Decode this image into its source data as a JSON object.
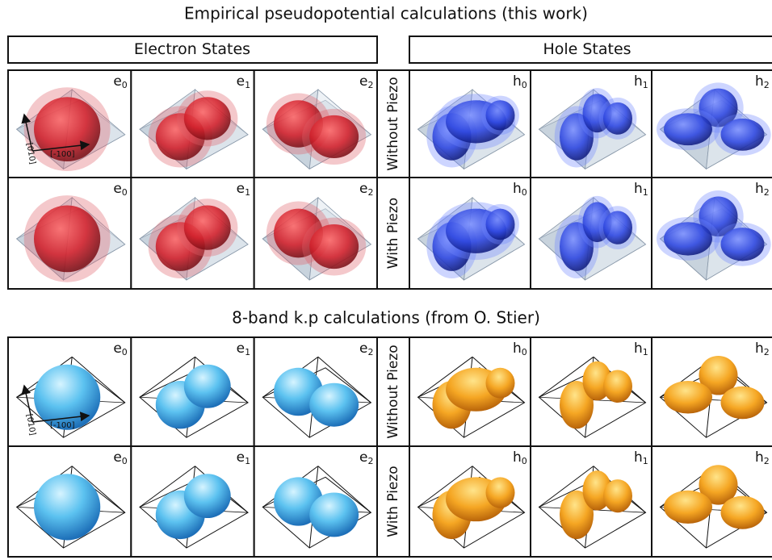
{
  "sections": [
    {
      "title": "Empirical pseudopotential calculations (this work)",
      "headers": [
        "Electron States",
        "Hole States"
      ],
      "axes": [
        "[010]",
        "[-100]"
      ],
      "rows": [
        {
          "label": "Without Piezo",
          "panels": [
            {
              "base": "e",
              "sub": "0"
            },
            {
              "base": "e",
              "sub": "1"
            },
            {
              "base": "e",
              "sub": "2"
            },
            {
              "base": "h",
              "sub": "0"
            },
            {
              "base": "h",
              "sub": "1"
            },
            {
              "base": "h",
              "sub": "2"
            }
          ]
        },
        {
          "label": "With Piezo",
          "panels": [
            {
              "base": "e",
              "sub": "0"
            },
            {
              "base": "e",
              "sub": "1"
            },
            {
              "base": "e",
              "sub": "2"
            },
            {
              "base": "h",
              "sub": "0"
            },
            {
              "base": "h",
              "sub": "1"
            },
            {
              "base": "h",
              "sub": "2"
            }
          ]
        }
      ]
    },
    {
      "title": "8-band k.p calculations (from O. Stier)",
      "axes": [
        "[010]",
        "[-100]"
      ],
      "rows": [
        {
          "label": "Without Piezo",
          "panels": [
            {
              "base": "e",
              "sub": "0"
            },
            {
              "base": "e",
              "sub": "1"
            },
            {
              "base": "e",
              "sub": "2"
            },
            {
              "base": "h",
              "sub": "0"
            },
            {
              "base": "h",
              "sub": "1"
            },
            {
              "base": "h",
              "sub": "2"
            }
          ]
        },
        {
          "label": "With Piezo",
          "panels": [
            {
              "base": "e",
              "sub": "0"
            },
            {
              "base": "e",
              "sub": "1"
            },
            {
              "base": "e",
              "sub": "2"
            },
            {
              "base": "h",
              "sub": "0"
            },
            {
              "base": "h",
              "sub": "1"
            },
            {
              "base": "h",
              "sub": "2"
            }
          ]
        }
      ]
    }
  ]
}
